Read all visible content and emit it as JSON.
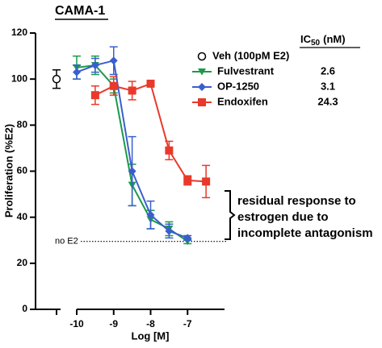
{
  "chart_data": {
    "type": "line",
    "title": "CAMA-1",
    "x_label": "Log [M]",
    "y_label": "Proliferation (%E2)",
    "xlim": [
      -10,
      -6
    ],
    "xticks": [
      -10,
      -9,
      -8,
      -7
    ],
    "ylim": [
      0,
      120
    ],
    "yticks": [
      0,
      20,
      40,
      60,
      80,
      100,
      120
    ],
    "ic50_header": {
      "main": "IC",
      "sub": "50",
      "unit": "(nM)"
    },
    "vehicle": {
      "name": "Veh (100pM E2)",
      "value": 100,
      "error": 4
    },
    "series": [
      {
        "name": "Fulvestrant",
        "color": "#1a9a4a",
        "marker": "triangle-down",
        "ic50": 2.6,
        "x": [
          -10,
          -9.5,
          -9,
          -8.5,
          -8,
          -7.5,
          -7
        ],
        "values": [
          105,
          106,
          97,
          54,
          39,
          35,
          29.5
        ],
        "errors": [
          5,
          4,
          3,
          9,
          4,
          3,
          1
        ]
      },
      {
        "name": "OP-1250",
        "color": "#3a5fcd",
        "marker": "diamond",
        "ic50": 3.1,
        "x": [
          -10,
          -9.5,
          -9,
          -8.5,
          -8,
          -7.5,
          -7
        ],
        "values": [
          103,
          106,
          108,
          60,
          41,
          34,
          31
        ],
        "errors": [
          3,
          3,
          6,
          15,
          6,
          3,
          1
        ]
      },
      {
        "name": "Endoxifen",
        "color": "#e8392b",
        "marker": "square",
        "ic50": 24.3,
        "x": [
          -9.5,
          -9,
          -8.5,
          -8,
          -7.5,
          -7,
          -6.5
        ],
        "values": [
          93,
          97,
          95,
          98,
          69,
          56,
          55.5
        ],
        "errors": [
          4,
          4,
          4,
          1,
          4,
          2,
          7
        ]
      }
    ],
    "reference_line": {
      "label": "no E2",
      "value": 29.5
    },
    "annotation": [
      "residual response to",
      "estrogen due to",
      "incomplete antagonism"
    ]
  }
}
